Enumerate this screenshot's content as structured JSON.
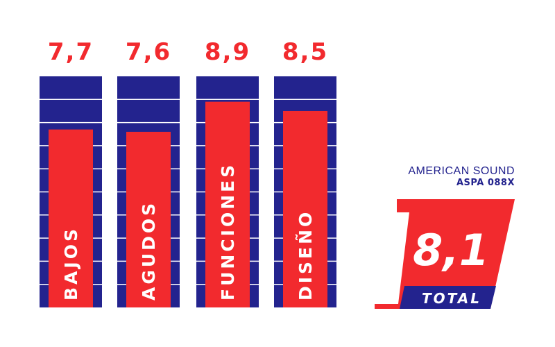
{
  "chart_data": {
    "type": "bar",
    "categories": [
      "BAJOS",
      "AGUDOS",
      "FUNCIONES",
      "DISEÑO"
    ],
    "values": [
      7.7,
      7.6,
      8.9,
      8.5
    ],
    "value_labels": [
      "7,7",
      "7,6",
      "8,9",
      "8,5"
    ],
    "ylim": [
      0,
      10
    ],
    "grid": true,
    "title": "",
    "xlabel": "",
    "ylabel": ""
  },
  "product": {
    "brand": "AMERICAN SOUND",
    "model": "ASPA 088X"
  },
  "total": {
    "score": "8,1",
    "label": "TOTAL"
  },
  "colors": {
    "accent_red": "#f22a2e",
    "navy": "#23238e",
    "background": "#ffffff"
  }
}
